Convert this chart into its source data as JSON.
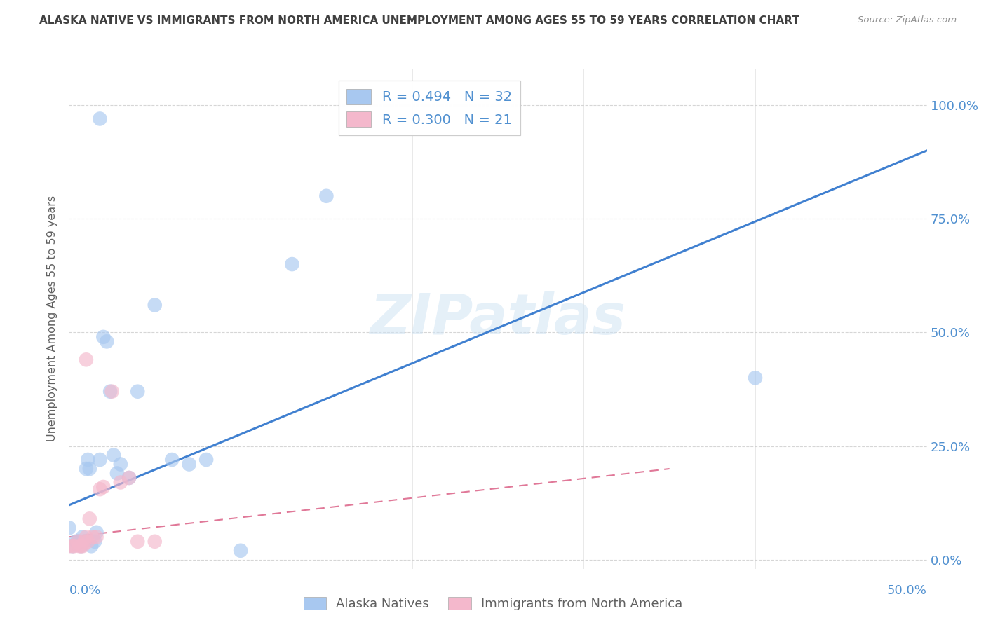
{
  "title": "ALASKA NATIVE VS IMMIGRANTS FROM NORTH AMERICA UNEMPLOYMENT AMONG AGES 55 TO 59 YEARS CORRELATION CHART",
  "source": "Source: ZipAtlas.com",
  "ylabel": "Unemployment Among Ages 55 to 59 years",
  "ytick_labels": [
    "0.0%",
    "25.0%",
    "50.0%",
    "75.0%",
    "100.0%"
  ],
  "ytick_values": [
    0.0,
    0.25,
    0.5,
    0.75,
    1.0
  ],
  "xmin": 0.0,
  "xmax": 0.5,
  "ymin": -0.02,
  "ymax": 1.08,
  "legend_blue_r": "R = 0.494",
  "legend_blue_n": "N = 32",
  "legend_pink_r": "R = 0.300",
  "legend_pink_n": "N = 21",
  "legend_label_blue": "Alaska Natives",
  "legend_label_pink": "Immigrants from North America",
  "blue_color": "#a8c8f0",
  "pink_color": "#f4b8cc",
  "blue_line_color": "#4080d0",
  "pink_line_color": "#e07898",
  "watermark": "ZIPatlas",
  "blue_scatter_x": [
    0.0,
    0.002,
    0.004,
    0.005,
    0.006,
    0.007,
    0.008,
    0.009,
    0.01,
    0.011,
    0.012,
    0.013,
    0.015,
    0.016,
    0.018,
    0.02,
    0.022,
    0.024,
    0.026,
    0.028,
    0.03,
    0.035,
    0.04,
    0.05,
    0.06,
    0.07,
    0.08,
    0.1,
    0.13,
    0.15,
    0.4,
    0.018
  ],
  "blue_scatter_y": [
    0.07,
    0.03,
    0.04,
    0.04,
    0.04,
    0.03,
    0.05,
    0.04,
    0.2,
    0.22,
    0.2,
    0.03,
    0.04,
    0.06,
    0.22,
    0.49,
    0.48,
    0.37,
    0.23,
    0.19,
    0.21,
    0.18,
    0.37,
    0.56,
    0.22,
    0.21,
    0.22,
    0.02,
    0.65,
    0.8,
    0.4,
    0.97
  ],
  "pink_scatter_x": [
    0.0,
    0.002,
    0.003,
    0.005,
    0.006,
    0.007,
    0.008,
    0.009,
    0.01,
    0.011,
    0.012,
    0.014,
    0.016,
    0.018,
    0.02,
    0.025,
    0.03,
    0.035,
    0.04,
    0.05,
    0.01
  ],
  "pink_scatter_y": [
    0.03,
    0.03,
    0.03,
    0.04,
    0.03,
    0.03,
    0.03,
    0.04,
    0.05,
    0.04,
    0.09,
    0.05,
    0.05,
    0.155,
    0.16,
    0.37,
    0.17,
    0.18,
    0.04,
    0.04,
    0.44
  ],
  "blue_line_x": [
    0.0,
    0.5
  ],
  "blue_line_y": [
    0.12,
    0.9
  ],
  "pink_line_x": [
    0.0,
    0.35
  ],
  "pink_line_y": [
    0.05,
    0.2
  ],
  "grid_color": "#cccccc",
  "bg_color": "#ffffff",
  "title_color": "#404040",
  "axis_label_color": "#5090d0",
  "ylabel_color": "#606060"
}
